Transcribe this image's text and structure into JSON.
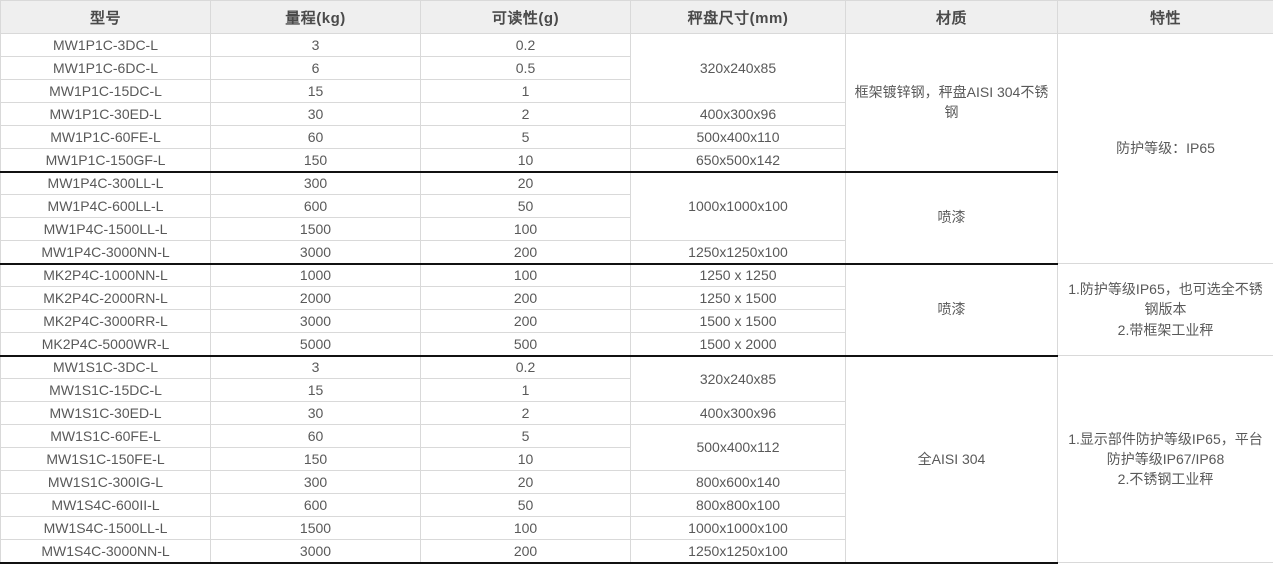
{
  "colors": {
    "header_bg": "#efefef",
    "header_text": "#4a4a4a",
    "cell_text": "#595959",
    "grid_border": "#d9d9d9",
    "group_border": "#111111"
  },
  "table": {
    "columns": [
      {
        "id": "model",
        "label": "型号"
      },
      {
        "id": "capacity",
        "label": "量程(kg)"
      },
      {
        "id": "readability",
        "label": "可读性(g)"
      },
      {
        "id": "pan-size",
        "label": "秤盘尺寸(mm)"
      },
      {
        "id": "material",
        "label": "材质"
      },
      {
        "id": "features",
        "label": "特性"
      }
    ],
    "rows": [
      [
        {
          "t": "MW1P1C-3DC-L"
        },
        {
          "t": "3"
        },
        {
          "t": "0.2"
        },
        {
          "t": "320x240x85",
          "rs": 3
        },
        {
          "t": "框架镀锌钢，秤盘AISI 304不锈钢",
          "rs": 6
        },
        {
          "t": "防护等级：IP65",
          "rs": 10
        }
      ],
      [
        {
          "t": "MW1P1C-6DC-L"
        },
        {
          "t": "6"
        },
        {
          "t": "0.5"
        }
      ],
      [
        {
          "t": "MW1P1C-15DC-L"
        },
        {
          "t": "15"
        },
        {
          "t": "1"
        }
      ],
      [
        {
          "t": "MW1P1C-30ED-L"
        },
        {
          "t": "30"
        },
        {
          "t": "2"
        },
        {
          "t": "400x300x96"
        }
      ],
      [
        {
          "t": "MW1P1C-60FE-L"
        },
        {
          "t": "60"
        },
        {
          "t": "5"
        },
        {
          "t": "500x400x110"
        }
      ],
      [
        {
          "t": "MW1P1C-150GF-L"
        },
        {
          "t": "150"
        },
        {
          "t": "10"
        },
        {
          "t": "650x500x142"
        }
      ],
      [
        {
          "t": "MW1P4C-300LL-L",
          "c": "gt"
        },
        {
          "t": "300",
          "c": "gt"
        },
        {
          "t": "20",
          "c": "gt"
        },
        {
          "t": "1000x1000x100",
          "rs": 3,
          "c": "gt"
        },
        {
          "t": "喷漆",
          "rs": 4,
          "c": "gt"
        }
      ],
      [
        {
          "t": "MW1P4C-600LL-L"
        },
        {
          "t": "600"
        },
        {
          "t": "50"
        }
      ],
      [
        {
          "t": "MW1P4C-1500LL-L"
        },
        {
          "t": "1500"
        },
        {
          "t": "100"
        }
      ],
      [
        {
          "t": "MW1P4C-3000NN-L"
        },
        {
          "t": "3000"
        },
        {
          "t": "200"
        },
        {
          "t": "1250x1250x100"
        }
      ],
      [
        {
          "t": "MK2P4C-1000NN-L",
          "c": "gt"
        },
        {
          "t": "1000",
          "c": "gt"
        },
        {
          "t": "100",
          "c": "gt"
        },
        {
          "t": "1250 x 1250",
          "c": "gt"
        },
        {
          "t": "喷漆",
          "rs": 4,
          "c": "gt"
        },
        {
          "lines": [
            "1.防护等级IP65，也可选全不锈钢版本",
            "2.带框架工业秤"
          ],
          "rs": 4
        }
      ],
      [
        {
          "t": "MK2P4C-2000RN-L"
        },
        {
          "t": "2000"
        },
        {
          "t": "200"
        },
        {
          "t": "1250 x 1500"
        }
      ],
      [
        {
          "t": "MK2P4C-3000RR-L"
        },
        {
          "t": "3000"
        },
        {
          "t": "200"
        },
        {
          "t": "1500 x 1500"
        }
      ],
      [
        {
          "t": "MK2P4C-5000WR-L"
        },
        {
          "t": "5000"
        },
        {
          "t": "500"
        },
        {
          "t": "1500 x 2000"
        }
      ],
      [
        {
          "t": "MW1S1C-3DC-L",
          "c": "gt"
        },
        {
          "t": "3",
          "c": "gt"
        },
        {
          "t": "0.2",
          "c": "gt"
        },
        {
          "t": "320x240x85",
          "rs": 2,
          "c": "gt"
        },
        {
          "t": "全AISI 304",
          "rs": 9,
          "c": "gt gb"
        },
        {
          "lines": [
            "1.显示部件防护等级IP65，平台防护等级IP67/IP68",
            "2.不锈钢工业秤"
          ],
          "rs": 9
        }
      ],
      [
        {
          "t": "MW1S1C-15DC-L"
        },
        {
          "t": "15"
        },
        {
          "t": "1"
        }
      ],
      [
        {
          "t": "MW1S1C-30ED-L"
        },
        {
          "t": "30"
        },
        {
          "t": "2"
        },
        {
          "t": "400x300x96"
        }
      ],
      [
        {
          "t": "MW1S1C-60FE-L"
        },
        {
          "t": "60"
        },
        {
          "t": "5"
        },
        {
          "t": "500x400x112",
          "rs": 2
        }
      ],
      [
        {
          "t": "MW1S1C-150FE-L"
        },
        {
          "t": "150"
        },
        {
          "t": "10"
        }
      ],
      [
        {
          "t": "MW1S1C-300IG-L"
        },
        {
          "t": "300"
        },
        {
          "t": "20"
        },
        {
          "t": "800x600x140"
        }
      ],
      [
        {
          "t": "MW1S4C-600II-L"
        },
        {
          "t": "600"
        },
        {
          "t": "50"
        },
        {
          "t": "800x800x100"
        }
      ],
      [
        {
          "t": "MW1S4C-1500LL-L"
        },
        {
          "t": "1500"
        },
        {
          "t": "100"
        },
        {
          "t": "1000x1000x100"
        }
      ],
      [
        {
          "t": "MW1S4C-3000NN-L",
          "c": "gb"
        },
        {
          "t": "3000",
          "c": "gb"
        },
        {
          "t": "200",
          "c": "gb"
        },
        {
          "t": "1250x1250x100",
          "c": "gb"
        }
      ]
    ]
  }
}
